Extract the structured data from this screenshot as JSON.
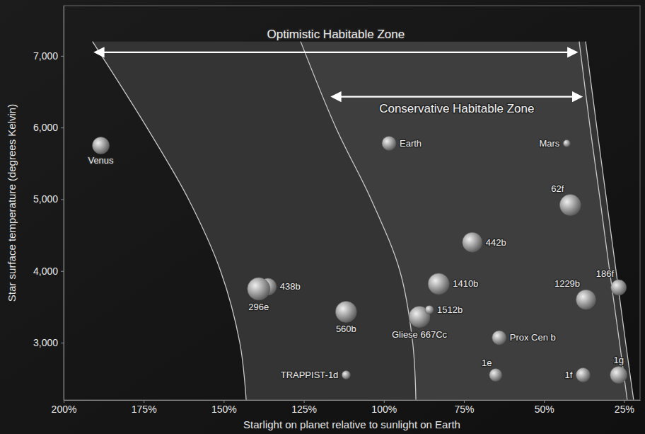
{
  "chart_data": {
    "type": "scatter",
    "x_label": "Starlight on planet relative to sunlight on Earth",
    "y_label": "Star surface temperature (degrees Kelvin)",
    "xlim": [
      200,
      20
    ],
    "ylim": [
      2200,
      7700
    ],
    "xticks": [
      {
        "value": 200,
        "label": "200%"
      },
      {
        "value": 175,
        "label": "175%"
      },
      {
        "value": 150,
        "label": "150%"
      },
      {
        "value": 125,
        "label": "125%"
      },
      {
        "value": 100,
        "label": "100%"
      },
      {
        "value": 75,
        "label": "75%"
      },
      {
        "value": 50,
        "label": "50%"
      },
      {
        "value": 25,
        "label": "25%"
      }
    ],
    "yticks": [
      {
        "value": 3000,
        "label": "3,000"
      },
      {
        "value": 4000,
        "label": "4,000"
      },
      {
        "value": 5000,
        "label": "5,000"
      },
      {
        "value": 6000,
        "label": "6,000"
      },
      {
        "value": 7000,
        "label": "7,000"
      }
    ],
    "grid": false,
    "annotations": [
      {
        "text": "Optimistic Habitable Zone",
        "x": [
          190,
          40
        ],
        "y": 7050
      },
      {
        "text": "Conservative Habitable Zone",
        "x": [
          116,
          38.5
        ],
        "y": 6430
      }
    ],
    "series": [
      {
        "type": "line",
        "color": "#c8c8c8",
        "x": [
          191,
          174,
          161,
          151,
          145,
          143
        ],
        "values": [
          7200,
          6000,
          5000,
          4000,
          3000,
          2200
        ]
      },
      {
        "type": "line",
        "color": "#c8c8c8",
        "x": [
          126,
          115,
          104,
          95,
          91,
          90
        ],
        "values": [
          7200,
          6000,
          5000,
          4000,
          3000,
          2200
        ]
      },
      {
        "type": "line",
        "color": "#c8c8c8",
        "x": [
          39,
          35.6,
          32.5,
          29.5,
          26.4,
          24
        ],
        "values": [
          7200,
          6000,
          5000,
          4000,
          3000,
          2200
        ]
      },
      {
        "type": "line",
        "color": "#c8c8c8",
        "x": [
          37,
          33.5,
          30.5,
          27.5,
          24.5,
          22
        ],
        "values": [
          7200,
          6000,
          5000,
          4000,
          3000,
          2200
        ]
      },
      {
        "type": "scatter",
        "color": "#9c9c9c",
        "marker": "circle",
        "labels": [
          "Venus",
          "Earth",
          "Mars",
          "62f",
          "442b",
          "438b",
          "296e",
          "1410b",
          "560b",
          "Gliese 667Cc",
          "1512b",
          "Prox Cen b",
          "1229b",
          "186f",
          "TRAPPIST-1d",
          "1e",
          "1f",
          "1g"
        ],
        "x": [
          188.4,
          98.4,
          42.9,
          41.8,
          72.4,
          136.2,
          139.1,
          82.9,
          111.8,
          88.9,
          85.8,
          64,
          36.9,
          26.7,
          111.8,
          65.1,
          37.8,
          26.7
        ],
        "values": [
          5750,
          5780,
          5780,
          4920,
          4400,
          3780,
          3750,
          3820,
          3430,
          3360,
          3460,
          3070,
          3600,
          3770,
          2550,
          2550,
          2550,
          2550
        ],
        "sizes": [
          1.2,
          1.0,
          0.5,
          1.5,
          1.4,
          1.2,
          1.6,
          1.5,
          1.5,
          1.5,
          0.6,
          1.0,
          1.4,
          1.1,
          0.6,
          0.9,
          1.0,
          1.2
        ]
      }
    ]
  }
}
